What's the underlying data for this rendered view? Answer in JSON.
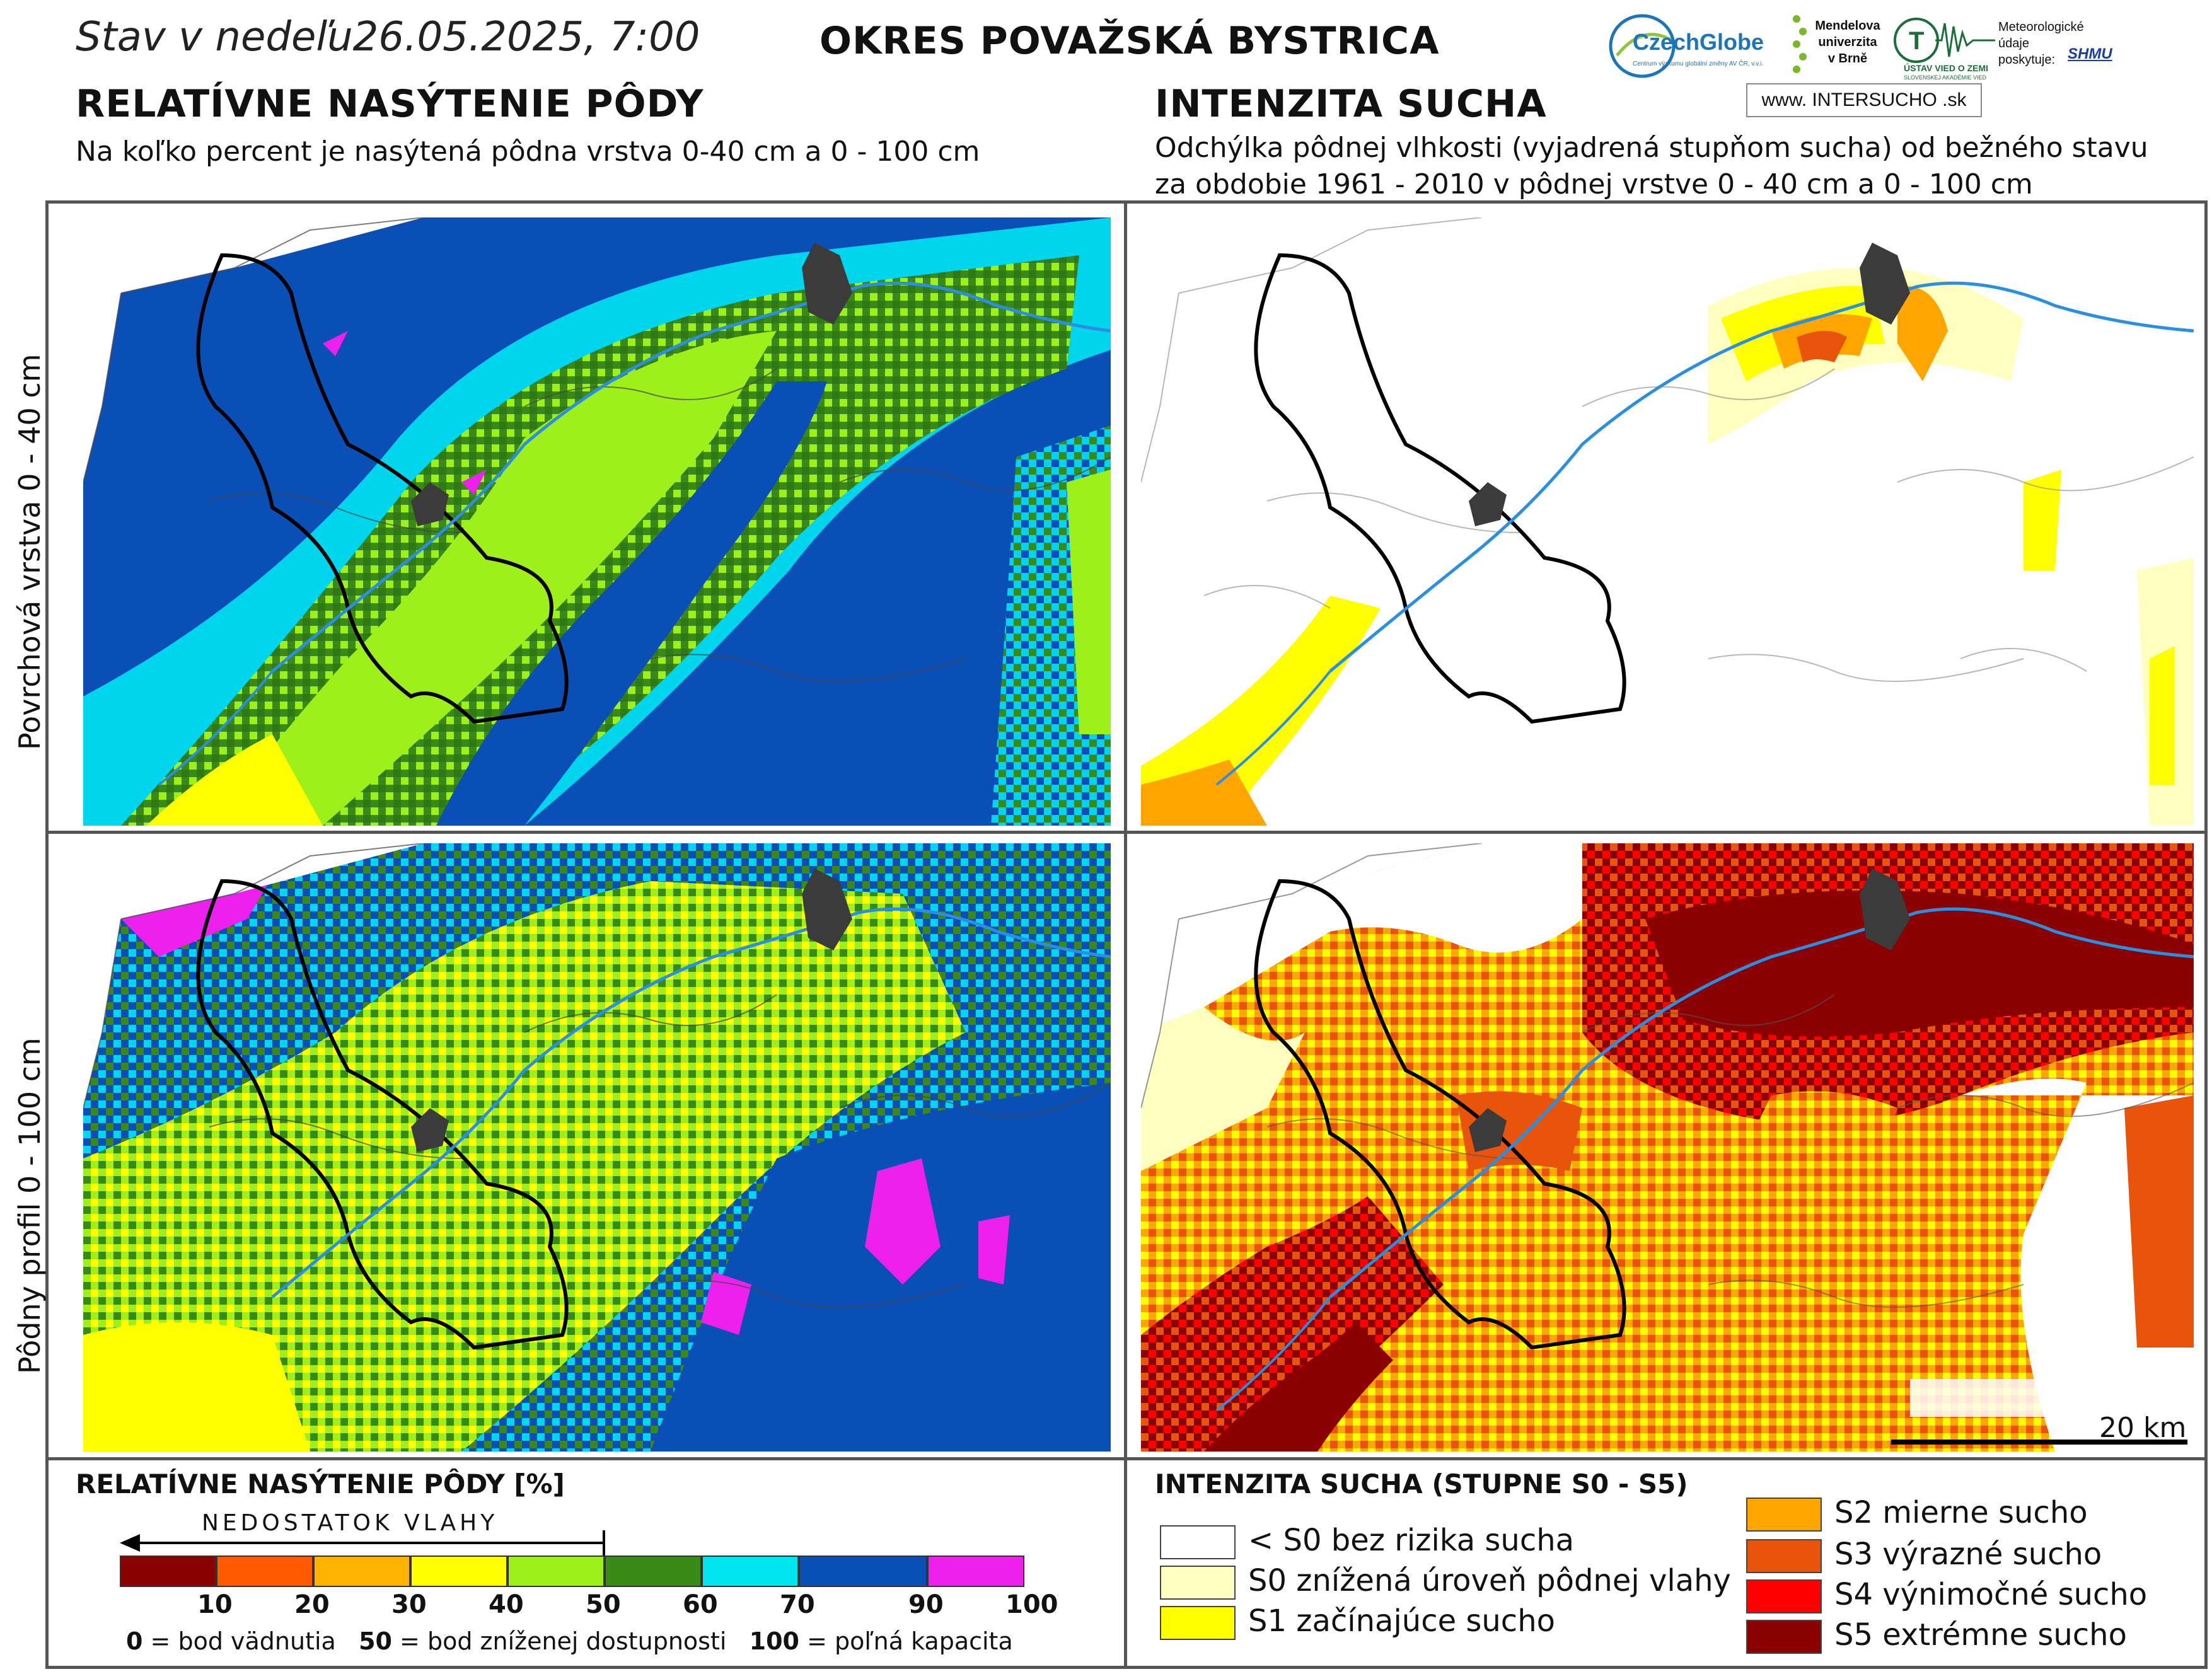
{
  "header": {
    "date_prefix": "Stav v nedeľu",
    "date": "26.05.2025, 7:00",
    "region": "OKRES  POVAŽSKÁ BYSTRICA"
  },
  "logos": {
    "czechglobe": "CzechGlobe",
    "czechglobe_sub": "Centrum výzkumu globální změny AV ČR, v.v.i.",
    "mendel": "Mendelova univerzita v Brně",
    "uvz": "ÚSTAV VIED O ZEMI",
    "uvz_sub": "SLOVENSKEJ AKADÉMIE VIED",
    "provider_label": "Meteorologické údaje poskytuje:",
    "shmu": "SHMU",
    "intersucho": "www. INTERSUCHO .sk"
  },
  "left_section": {
    "title": "RELATÍVNE NASÝTENIE PÔDY",
    "subtitle": "Na koľko percent je nasýtená pôdna vrstva 0-40 cm a 0 - 100 cm"
  },
  "right_section": {
    "title": "INTENZITA SUCHA",
    "subtitle_line1": "Odchýlka pôdnej vlhkosti (vyjadrená stupňom sucha) od bežného stavu",
    "subtitle_line2": "za obdobie 1961 - 2010 v pôdnej vrstve 0 - 40 cm a 0 - 100 cm"
  },
  "row_labels": {
    "top": "Povrchová vrstva 0 - 40 cm",
    "bottom": "Pôdny profil 0 - 100 cm"
  },
  "scale_bar": "20 km",
  "saturation_legend": {
    "title": "RELATÍVNE NASÝTENIE PÔDY [%]",
    "arrow_label": "NEDOSTATOK VLAHY",
    "colors": [
      "#8b0000",
      "#ff5a00",
      "#ffb300",
      "#ffff00",
      "#9ef01a",
      "#3a8a1a",
      "#00e5ee",
      "#0a4fb5",
      "#ee20ee"
    ],
    "ticks": [
      "10",
      "20",
      "30",
      "40",
      "50",
      "60",
      "70",
      "90",
      "100"
    ],
    "footnote": [
      {
        "value": "0",
        "text": " = bod vädnutia"
      },
      {
        "value": "50",
        "text": " = bod zníženej dostupnosti"
      },
      {
        "value": "100",
        "text": " = poľná kapacita"
      }
    ]
  },
  "drought_legend": {
    "title": "INTENZITA SUCHA (STUPNE S0 - S5)",
    "items": [
      {
        "label": "< S0 bez rizika sucha",
        "color": "#ffffff"
      },
      {
        "label": "S0 znížená úroveň pôdnej vlahy",
        "color": "#ffffc0"
      },
      {
        "label": "S1 začínajúce sucho",
        "color": "#ffff00"
      },
      {
        "label": "S2 mierne sucho",
        "color": "#ffa500"
      },
      {
        "label": "S3 výrazné sucho",
        "color": "#e8540a"
      },
      {
        "label": "S4 výnimočné sucho",
        "color": "#ff0000"
      },
      {
        "label": "S5 extrémne sucho",
        "color": "#8b0000"
      }
    ]
  }
}
